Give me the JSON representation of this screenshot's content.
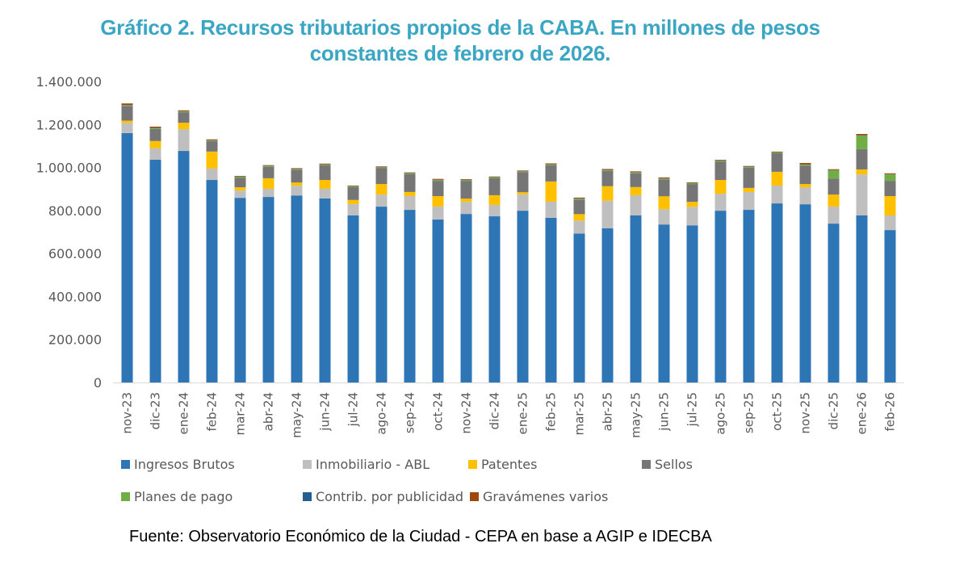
{
  "chart_data": {
    "type": "bar",
    "stacked": true,
    "title": "Gráfico 2. Recursos tributarios propios de la CABA. En millones de pesos constantes de febrero de 2026.",
    "title_lines": [
      "Gráfico 2. Recursos tributarios propios de la CABA. En millones de pesos",
      "constantes de febrero de 2026."
    ],
    "xlabel": "",
    "ylabel": "",
    "ylim": [
      0,
      1400000
    ],
    "yticks": [
      0,
      200000,
      400000,
      600000,
      800000,
      1000000,
      1200000,
      1400000
    ],
    "ytick_labels": [
      "0",
      "200.000",
      "400.000",
      "600.000",
      "800.000",
      "1.000.000",
      "1.200.000",
      "1.400.000"
    ],
    "grid": false,
    "legend_position": "bottom",
    "categories": [
      "nov-23",
      "dic-23",
      "ene-24",
      "feb-24",
      "mar-24",
      "abr-24",
      "may-24",
      "jun-24",
      "jul-24",
      "ago-24",
      "sep-24",
      "oct-24",
      "nov-24",
      "dic-24",
      "ene-25",
      "feb-25",
      "mar-25",
      "abr-25",
      "may-25",
      "jun-25",
      "jul-25",
      "ago-25",
      "sep-25",
      "oct-25",
      "nov-25",
      "dic-25",
      "ene-26",
      "feb-26"
    ],
    "series": [
      {
        "name": "Ingresos Brutos",
        "color": "#2e75b6",
        "values": [
          1160000,
          1036000,
          1077000,
          942000,
          859000,
          863000,
          870000,
          856000,
          777000,
          818000,
          803000,
          758000,
          784000,
          773000,
          799000,
          766000,
          693000,
          717000,
          777000,
          735000,
          731000,
          799000,
          803000,
          833000,
          829000,
          739000,
          777000,
          709000
        ]
      },
      {
        "name": "Inmobiliario - ABL",
        "color": "#bfbfbf",
        "values": [
          47000,
          53000,
          101000,
          53000,
          34000,
          38000,
          45000,
          45000,
          53000,
          56000,
          64000,
          60000,
          56000,
          53000,
          75000,
          75000,
          60000,
          128000,
          94000,
          71000,
          86000,
          79000,
          83000,
          83000,
          79000,
          79000,
          191000,
          68000
        ]
      },
      {
        "name": "Patentes",
        "color": "#ffc000",
        "values": [
          11000,
          34000,
          30000,
          79000,
          15000,
          49000,
          15000,
          41000,
          19000,
          49000,
          19000,
          49000,
          15000,
          45000,
          11000,
          94000,
          30000,
          68000,
          38000,
          60000,
          23000,
          64000,
          19000,
          64000,
          15000,
          56000,
          23000,
          90000
        ]
      },
      {
        "name": "Sellos",
        "color": "#767676",
        "values": [
          68000,
          56000,
          49000,
          49000,
          45000,
          53000,
          60000,
          68000,
          60000,
          75000,
          83000,
          71000,
          83000,
          79000,
          94000,
          75000,
          68000,
          71000,
          64000,
          79000,
          83000,
          86000,
          94000,
          86000,
          86000,
          75000,
          94000,
          71000
        ]
      },
      {
        "name": "Planes de pago",
        "color": "#70ad47",
        "values": [
          4000,
          4000,
          4000,
          3000,
          4000,
          4000,
          3000,
          3000,
          3000,
          3000,
          4000,
          4000,
          4000,
          4000,
          3000,
          4000,
          4000,
          4000,
          4000,
          4000,
          4000,
          4000,
          4000,
          4000,
          4000,
          38000,
          64000,
          30000
        ]
      },
      {
        "name": "Contrib. por publicidad",
        "color": "#255e91",
        "values": [
          1000,
          1000,
          1000,
          1000,
          1000,
          1000,
          1000,
          1000,
          1000,
          1000,
          1000,
          1000,
          1000,
          1000,
          1000,
          1000,
          1000,
          1000,
          1000,
          1000,
          1000,
          1000,
          1000,
          1000,
          1000,
          1000,
          1000,
          1000
        ]
      },
      {
        "name": "Gravámenes varios",
        "color": "#9e480e",
        "values": [
          7000,
          6000,
          4000,
          4000,
          3000,
          3000,
          3000,
          4000,
          3000,
          3000,
          3000,
          4000,
          3000,
          3000,
          3000,
          4000,
          4000,
          4000,
          4000,
          4000,
          3000,
          3000,
          3000,
          3000,
          7000,
          4000,
          6000,
          4000
        ]
      }
    ]
  },
  "source": "Fuente: Observatorio Económico de la Ciudad - CEPA en base a AGIP e IDECBA"
}
